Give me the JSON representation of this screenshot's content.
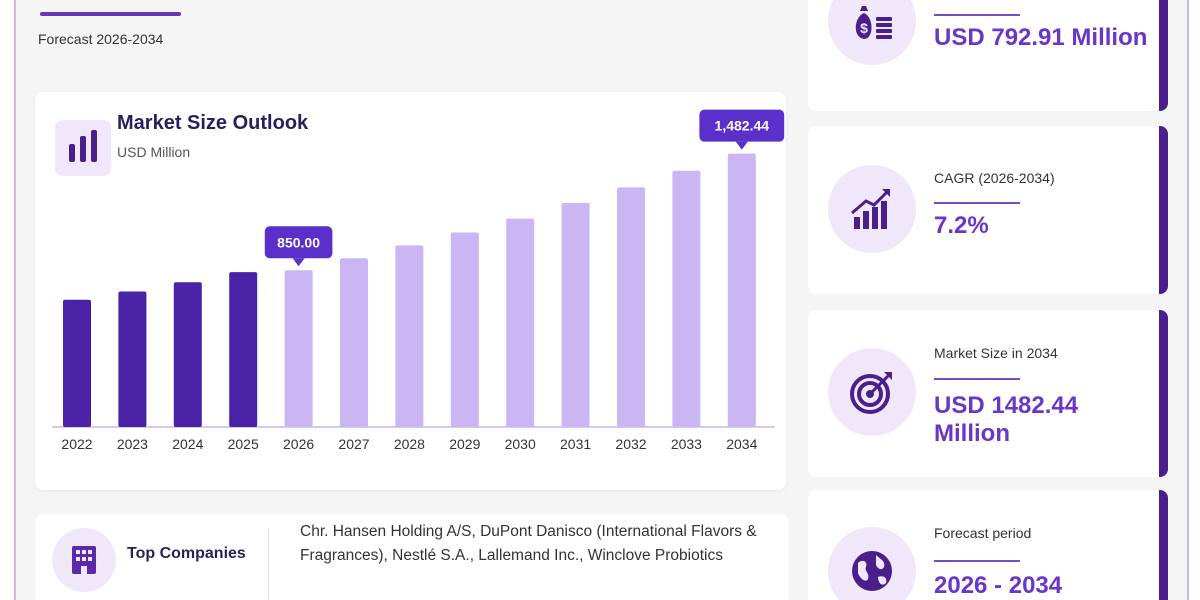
{
  "header": {
    "subtitle": "Forecast 2026-2034"
  },
  "chart_data": {
    "type": "bar",
    "title": "Market Size Outlook",
    "unit_label": "USD Million",
    "categories": [
      "2022",
      "2023",
      "2024",
      "2025",
      "2026",
      "2027",
      "2028",
      "2029",
      "2030",
      "2031",
      "2032",
      "2033",
      "2034"
    ],
    "values": [
      690,
      735,
      785,
      840,
      850,
      915,
      985,
      1055,
      1130,
      1215,
      1300,
      1390,
      1482.44
    ],
    "ylim": [
      0,
      1600
    ],
    "data_labels": {
      "2026": "850.00",
      "2034": "1,482.44"
    },
    "colors": {
      "historical": "#4a22a6",
      "forecast": "#c9b6f2",
      "label_bg": "#5b2fc9"
    },
    "forecast_start": "2026"
  },
  "stats": [
    {
      "label": "",
      "value": "USD 792.91 Million",
      "icon": "money-bag-icon"
    },
    {
      "label": "CAGR (2026-2034)",
      "value": "7.2%",
      "icon": "growth-chart-icon"
    },
    {
      "label": "Market Size in 2034",
      "value": "USD 1482.44 Million",
      "icon": "target-icon"
    },
    {
      "label": "Forecast period",
      "value": "2026 - 2034",
      "icon": "globe-icon"
    }
  ],
  "companies": {
    "label": "Top Companies",
    "text": "Chr. Hansen Holding A/S, DuPont Danisco (International Flavors & Fragrances), Nestlé S.A., Lallemand Inc., Winclove Probiotics",
    "icon": "building-icon"
  },
  "colors": {
    "accent": "#6a36c9",
    "dark": "#4a1f8c",
    "icon_bg": "#f1e7fb"
  }
}
